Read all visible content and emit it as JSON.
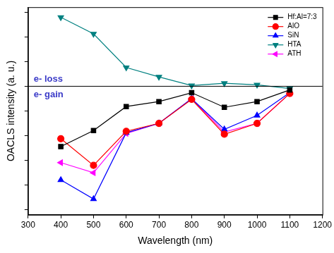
{
  "chart_data": {
    "type": "line",
    "x_label": "Wavelength (nm)",
    "y_label": "OACLS intensity (a. u.)",
    "x": [
      400,
      500,
      600,
      700,
      800,
      900,
      1000,
      1100
    ],
    "series": [
      {
        "name": "Hf:Al=7:3",
        "color": "#000000",
        "marker": "square",
        "values": [
          -2.44,
          -1.79,
          -0.82,
          -0.62,
          -0.26,
          -0.85,
          -0.62,
          -0.15
        ]
      },
      {
        "name": "AlO",
        "color": "#ff0000",
        "marker": "circle",
        "values": [
          -2.12,
          -3.2,
          -1.82,
          -1.5,
          -0.53,
          -1.94,
          -1.5,
          -0.29
        ]
      },
      {
        "name": "SiN",
        "color": "#0000ff",
        "marker": "triangle-up",
        "values": [
          -3.79,
          -4.56,
          -1.88,
          -1.5,
          -0.5,
          -1.74,
          -1.18,
          -0.26
        ]
      },
      {
        "name": "HTA",
        "color": "#008080",
        "marker": "triangle-down",
        "values": [
          2.79,
          2.12,
          0.76,
          0.38,
          0.03,
          0.12,
          0.06,
          -0.09
        ]
      },
      {
        "name": "ATH",
        "color": "#ff00ff",
        "marker": "triangle-left",
        "values": [
          -3.09,
          -3.5,
          -1.91,
          -1.5,
          -0.5,
          -1.85,
          -1.5,
          -0.29
        ]
      }
    ],
    "xlim": [
      300,
      1200
    ],
    "xticks": [
      300,
      400,
      500,
      600,
      700,
      800,
      900,
      1000,
      1100,
      1200
    ],
    "ylim": [
      -5.2,
      3.2
    ],
    "yticks": [
      -5,
      -4,
      -3,
      -2,
      -1,
      0,
      1,
      2,
      3
    ],
    "hline": 0,
    "annotations": [
      "e- loss",
      "e- gain"
    ],
    "grid": false,
    "legend": "upper right",
    "tick_labels": "x"
  }
}
